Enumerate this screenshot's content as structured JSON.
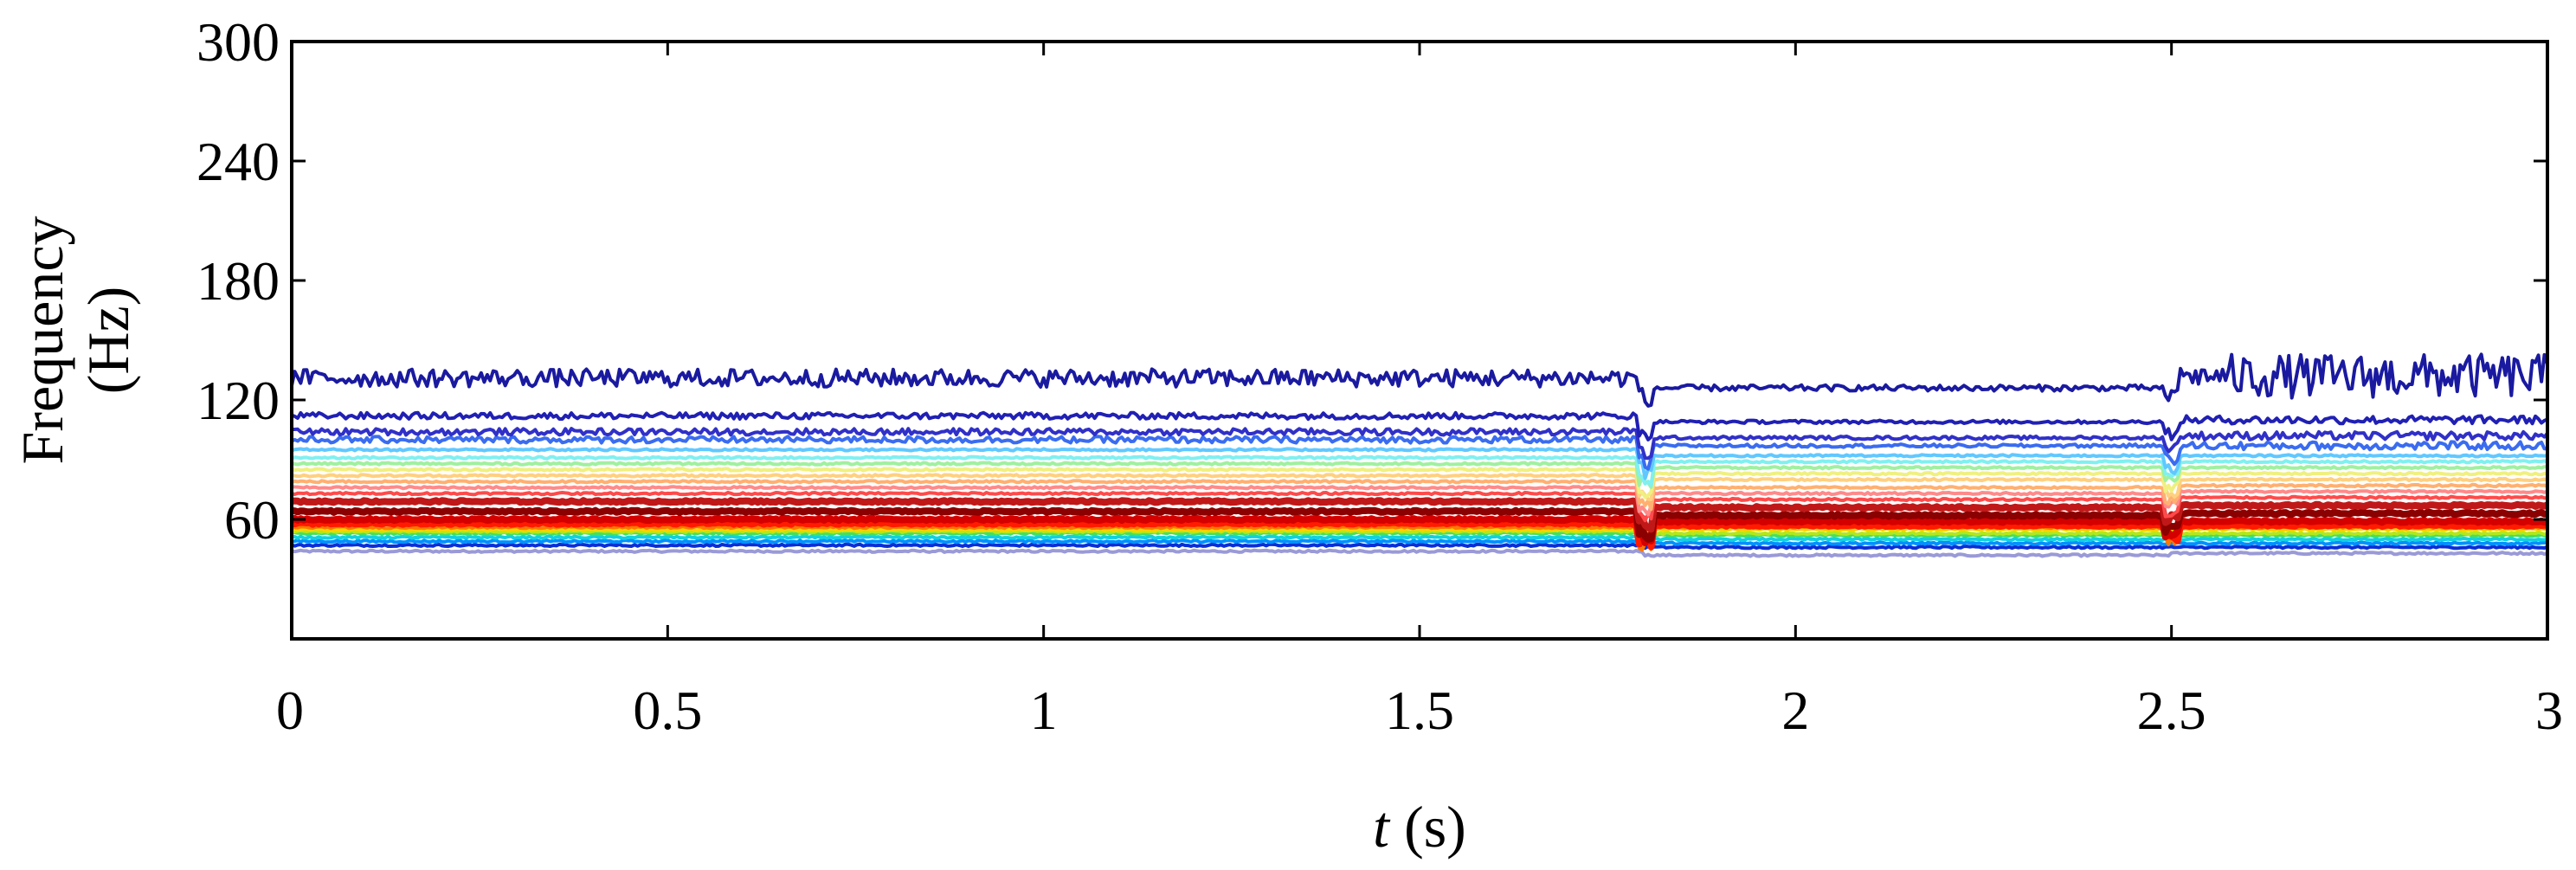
{
  "chart_data": {
    "type": "line",
    "title": "",
    "xlabel_var": "t",
    "xlabel_unit": " (s)",
    "ylabel_line1": "Frequency",
    "ylabel_line2": "(Hz)",
    "xlim": [
      0,
      3
    ],
    "ylim": [
      0,
      300
    ],
    "x_ticks": [
      0,
      0.5,
      1,
      1.5,
      2,
      2.5,
      3
    ],
    "x_tick_labels": [
      "0",
      "0.5",
      "1",
      "1.5",
      "2",
      "2.5",
      "3"
    ],
    "y_ticks": [
      60,
      120,
      180,
      240,
      300
    ],
    "y_tick_labels": [
      "60",
      "120",
      "180",
      "240",
      "300"
    ],
    "grid": false,
    "legend": "none",
    "segment_boundaries_s": [
      1.8,
      2.5
    ],
    "contours": [
      {
        "color": "#9a9ad8",
        "levels": [
          44,
          42,
          43
        ]
      },
      {
        "color": "#0a2fd6",
        "levels": [
          47,
          46,
          46
        ]
      },
      {
        "color": "#0090ff",
        "levels": [
          49,
          48,
          48
        ]
      },
      {
        "color": "#11d1e0",
        "levels": [
          51,
          50,
          50
        ]
      },
      {
        "color": "#3fe06a",
        "levels": [
          53,
          52,
          52
        ]
      },
      {
        "color": "#b4e81a",
        "levels": [
          54,
          53,
          53
        ]
      },
      {
        "color": "#ffd400",
        "levels": [
          55,
          55,
          55
        ]
      },
      {
        "color": "#ff7a00",
        "levels": [
          56,
          56,
          56
        ]
      },
      {
        "color": "#ff1a00",
        "levels": [
          58,
          57,
          57
        ]
      },
      {
        "color": "#d40000",
        "levels": [
          60,
          59,
          59
        ]
      },
      {
        "color": "#8b0000",
        "levels": [
          64,
          62,
          63
        ]
      },
      {
        "color": "#c01818",
        "levels": [
          69,
          66,
          67
        ]
      },
      {
        "color": "#ff4a4a",
        "levels": [
          73,
          70,
          71
        ]
      },
      {
        "color": "#ff8a8a",
        "levels": [
          76,
          73,
          74
        ]
      },
      {
        "color": "#ffb070",
        "levels": [
          79,
          76,
          77
        ]
      },
      {
        "color": "#ffd080",
        "levels": [
          82,
          80,
          80
        ]
      },
      {
        "color": "#f0f080",
        "levels": [
          85,
          83,
          83
        ]
      },
      {
        "color": "#a0f0a0",
        "levels": [
          88,
          86,
          86
        ]
      },
      {
        "color": "#80f0f0",
        "levels": [
          91,
          89,
          89
        ]
      },
      {
        "color": "#60c8ff",
        "levels": [
          95,
          92,
          92
        ]
      },
      {
        "color": "#3a6cf0",
        "levels": [
          100,
          97,
          97
        ]
      },
      {
        "color": "#3030c8",
        "levels": [
          104,
          101,
          102
        ]
      },
      {
        "color": "#2020b4",
        "levels": [
          112,
          109,
          110
        ]
      },
      {
        "color": "#1a1aa0",
        "levels": [
          131,
          126,
          132
        ]
      }
    ]
  }
}
